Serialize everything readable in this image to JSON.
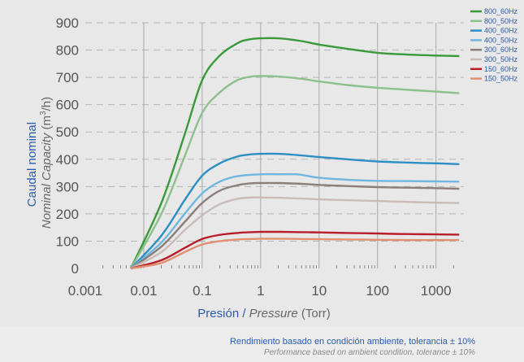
{
  "chart_data": {
    "type": "line",
    "x_scale": "log",
    "xlim": [
      0.001,
      3000
    ],
    "ylim": [
      0,
      900
    ],
    "grid": true,
    "legend_position": "top-right",
    "x_ticks": [
      {
        "value": 0.001,
        "label": "0.001"
      },
      {
        "value": 0.01,
        "label": "0.01"
      },
      {
        "value": 0.1,
        "label": "0.1"
      },
      {
        "value": 1,
        "label": "1"
      },
      {
        "value": 10,
        "label": "10"
      },
      {
        "value": 100,
        "label": "100"
      },
      {
        "value": 1000,
        "label": "1000"
      }
    ],
    "y_ticks": [
      0,
      100,
      200,
      300,
      400,
      500,
      600,
      700,
      800,
      900
    ],
    "ylabel_es": "Caudal nominal",
    "ylabel_en": "Nominal Capacity",
    "ylabel_unit_pre": " (m",
    "ylabel_unit_sup": "3",
    "ylabel_unit_post": "/h)",
    "xlabel_es": "Presión",
    "xlabel_sep": " / ",
    "xlabel_en": "Pressure",
    "xlabel_unit": " (Torr)",
    "series": [
      {
        "name": "800_60Hz",
        "color": "#3a9a3a",
        "x": [
          0.006,
          0.02,
          0.05,
          0.1,
          0.2,
          0.4,
          0.6,
          1,
          2,
          5,
          10,
          30,
          100,
          300,
          1000,
          2500
        ],
        "values": [
          0,
          240,
          490,
          690,
          780,
          825,
          838,
          843,
          843,
          833,
          820,
          805,
          790,
          784,
          780,
          778
        ]
      },
      {
        "name": "800_50Hz",
        "color": "#8cc08c",
        "x": [
          0.006,
          0.02,
          0.05,
          0.1,
          0.2,
          0.4,
          0.7,
          1,
          2,
          5,
          10,
          30,
          100,
          300,
          1000,
          2500
        ],
        "values": [
          0,
          200,
          410,
          570,
          645,
          690,
          703,
          705,
          703,
          695,
          685,
          672,
          662,
          655,
          648,
          642
        ]
      },
      {
        "name": "400_60Hz",
        "color": "#2b8ec4",
        "x": [
          0.006,
          0.02,
          0.05,
          0.1,
          0.2,
          0.4,
          0.7,
          1,
          2,
          5,
          10,
          30,
          100,
          300,
          1000,
          2500
        ],
        "values": [
          0,
          120,
          250,
          340,
          385,
          410,
          418,
          420,
          420,
          414,
          408,
          400,
          392,
          388,
          385,
          382
        ]
      },
      {
        "name": "400_50Hz",
        "color": "#6fb6e0",
        "x": [
          0.006,
          0.02,
          0.05,
          0.1,
          0.2,
          0.4,
          1,
          2,
          4,
          6,
          10,
          30,
          100,
          300,
          1000,
          2500
        ],
        "values": [
          0,
          95,
          200,
          275,
          318,
          338,
          345,
          345,
          345,
          340,
          332,
          325,
          321,
          320,
          319,
          318
        ]
      },
      {
        "name": "300_60Hz",
        "color": "#8b7f7c",
        "x": [
          0.006,
          0.02,
          0.05,
          0.1,
          0.2,
          0.4,
          0.7,
          1,
          2,
          5,
          10,
          30,
          100,
          300,
          1000,
          2500
        ],
        "values": [
          0,
          80,
          170,
          240,
          285,
          305,
          312,
          313,
          313,
          310,
          306,
          302,
          298,
          296,
          294,
          292
        ]
      },
      {
        "name": "300_50Hz",
        "color": "#c8bcb9",
        "x": [
          0.006,
          0.02,
          0.05,
          0.1,
          0.2,
          0.4,
          0.7,
          1,
          2,
          5,
          10,
          30,
          100,
          300,
          1000,
          2500
        ],
        "values": [
          0,
          60,
          140,
          195,
          235,
          255,
          260,
          260,
          259,
          256,
          253,
          250,
          247,
          244,
          241,
          240
        ]
      },
      {
        "name": "150_60Hz",
        "color": "#b81e2a",
        "x": [
          0.006,
          0.02,
          0.05,
          0.1,
          0.2,
          0.4,
          0.7,
          1,
          2,
          5,
          10,
          30,
          100,
          300,
          1000,
          2500
        ],
        "values": [
          0,
          30,
          75,
          108,
          123,
          130,
          133,
          134,
          134,
          133,
          132,
          130,
          128,
          126,
          125,
          124
        ]
      },
      {
        "name": "150_50Hz",
        "color": "#e09070",
        "x": [
          0.006,
          0.02,
          0.05,
          0.1,
          0.2,
          0.4,
          0.7,
          1,
          2,
          5,
          10,
          30,
          100,
          300,
          1000,
          2500
        ],
        "values": [
          0,
          20,
          60,
          88,
          100,
          106,
          108,
          109,
          109,
          108,
          107,
          106,
          105,
          104,
          104,
          104
        ]
      }
    ]
  },
  "footer": {
    "line1": "Rendimiento basado en condición ambiente, tolerancia ± 10%",
    "line2": "Performance based on ambient condition, tolerance ± 10%"
  }
}
